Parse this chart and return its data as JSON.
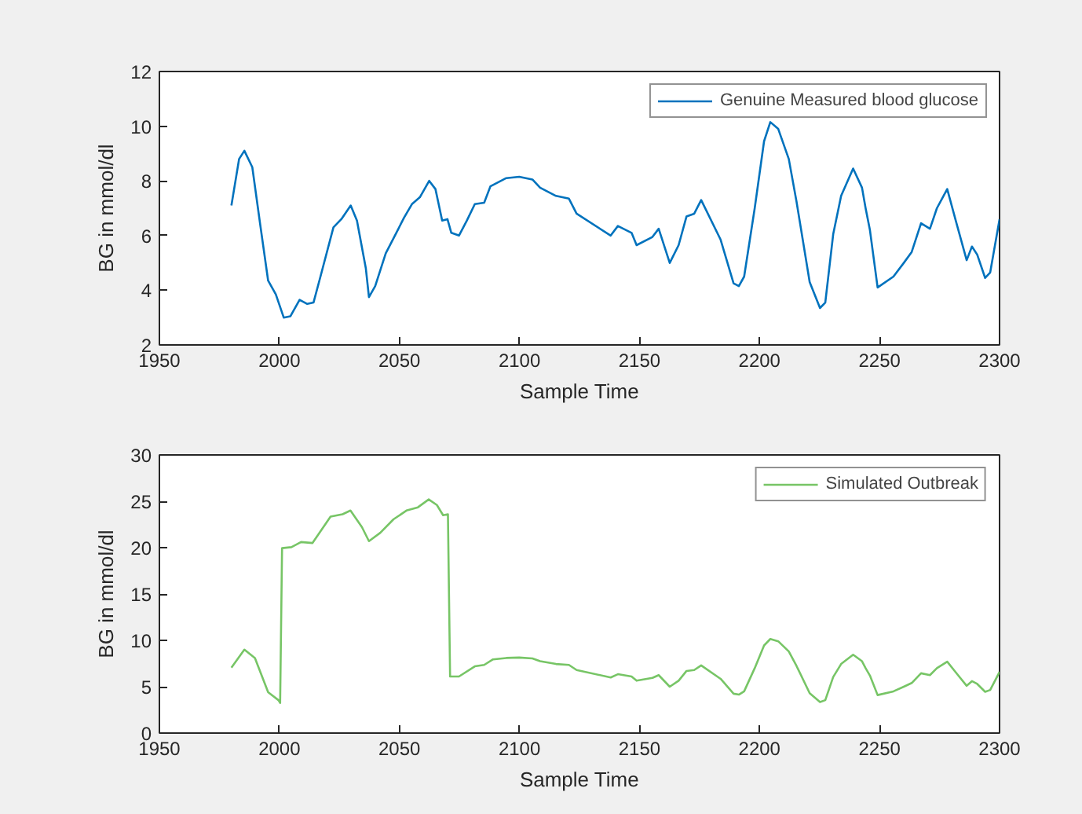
{
  "chart_data": [
    {
      "type": "line",
      "xlabel": "Sample Time",
      "ylabel": "BG in mmol/dl",
      "xlim": [
        1950,
        2300
      ],
      "xticks": [
        1950,
        2000,
        2050,
        2100,
        2150,
        2200,
        2250,
        2300
      ],
      "ylim": [
        2,
        12
      ],
      "yticks": [
        2,
        4,
        6,
        8,
        10,
        12
      ],
      "grid": false,
      "legend": "top right",
      "series": [
        {
          "name": "Genuine Measured blood glucose",
          "color": "#0072bd",
          "x": [
            1980,
            1983.2,
            1985.4,
            1988.7,
            1992,
            1995.3,
            1998.5,
            2001.8,
            2004.6,
            2008.4,
            2011.6,
            2014.2,
            2017.1,
            2022.5,
            2025.8,
            2029.7,
            2032.3,
            2036,
            2037.3,
            2039.9,
            2044.3,
            2048.7,
            2051.9,
            2055.2,
            2058.5,
            2062.4,
            2065,
            2067.8,
            2070,
            2071.6,
            2074.8,
            2078.1,
            2081.4,
            2085.3,
            2087.9,
            2094.5,
            2099.9,
            2105.4,
            2108.6,
            2115.2,
            2120.6,
            2123.8,
            2138,
            2141,
            2146.7,
            2148.8,
            2155.4,
            2158,
            2162.6,
            2166.3,
            2169.6,
            2172.8,
            2175.7,
            2183.8,
            2189.2,
            2191.4,
            2193.6,
            2198,
            2201.9,
            2204.5,
            2207.8,
            2212.2,
            2215.4,
            2220.9,
            2225.2,
            2227.4,
            2230.7,
            2234,
            2239,
            2242.7,
            2244.2,
            2246,
            2249.2,
            2255.8,
            2260.1,
            2263.4,
            2267.3,
            2271,
            2273.9,
            2278.2,
            2281.9,
            2286.3,
            2288.5,
            2290.7,
            2294,
            2296.1,
            2300
          ],
          "values": [
            7.1,
            8.8,
            9.1,
            8.5,
            6.4,
            4.35,
            3.85,
            3.0,
            3.05,
            3.65,
            3.5,
            3.55,
            4.5,
            6.3,
            6.6,
            7.1,
            6.55,
            4.8,
            3.75,
            4.15,
            5.35,
            6.1,
            6.65,
            7.15,
            7.4,
            8.0,
            7.7,
            6.55,
            6.6,
            6.1,
            6.0,
            6.55,
            7.15,
            7.2,
            7.8,
            8.1,
            8.15,
            8.05,
            7.75,
            7.45,
            7.35,
            6.8,
            6.0,
            6.35,
            6.1,
            5.65,
            5.95,
            6.25,
            5.0,
            5.65,
            6.7,
            6.8,
            7.3,
            5.85,
            4.25,
            4.15,
            4.5,
            7.0,
            9.45,
            10.15,
            9.9,
            8.8,
            7.25,
            4.3,
            3.35,
            3.55,
            6.05,
            7.45,
            8.45,
            7.75,
            7.0,
            6.2,
            4.1,
            4.5,
            5.0,
            5.4,
            6.45,
            6.25,
            7.0,
            7.7,
            6.5,
            5.1,
            5.6,
            5.3,
            4.45,
            4.65,
            6.6
          ]
        }
      ]
    },
    {
      "type": "line",
      "xlabel": "Sample Time",
      "ylabel": "BG in mmol/dl",
      "xlim": [
        1950,
        2300
      ],
      "xticks": [
        1950,
        2000,
        2050,
        2100,
        2150,
        2200,
        2250,
        2300
      ],
      "ylim": [
        0,
        30
      ],
      "yticks": [
        0,
        5,
        10,
        15,
        20,
        25,
        30
      ],
      "grid": false,
      "legend": "top right",
      "series": [
        {
          "name": "Simulated Outbreak",
          "color": "#77c566",
          "x": [
            1980,
            1985.4,
            1989.8,
            1995.3,
            1999.6,
            2000.3,
            2001.1,
            2005,
            2009,
            2013.8,
            2021.3,
            2026.3,
            2029.6,
            2034.4,
            2037.3,
            2042,
            2047.5,
            2052.9,
            2057.7,
            2062.2,
            2065.6,
            2068.2,
            2070.2,
            2071.1,
            2074.8,
            2081.4,
            2085.3,
            2089,
            2094.5,
            2099.9,
            2105.4,
            2108.6,
            2115.2,
            2120.6,
            2123.8,
            2138,
            2141,
            2146.7,
            2148.8,
            2155.4,
            2158,
            2162.6,
            2166.3,
            2169.6,
            2172.8,
            2175.7,
            2183.8,
            2189.2,
            2191.4,
            2193.6,
            2198,
            2201.9,
            2204.5,
            2207.8,
            2212.2,
            2215.4,
            2220.9,
            2225.2,
            2227.4,
            2230.7,
            2234,
            2239,
            2242.7,
            2244.2,
            2246,
            2249.2,
            2255.8,
            2260.1,
            2263.4,
            2267.3,
            2271,
            2273.9,
            2278.2,
            2281.9,
            2286.3,
            2288.5,
            2290.7,
            2294,
            2296.1,
            2300
          ],
          "values": [
            7.05,
            9.0,
            8.1,
            4.4,
            3.55,
            3.25,
            19.95,
            20.05,
            20.6,
            20.5,
            23.35,
            23.6,
            24.0,
            22.2,
            20.7,
            21.6,
            23.05,
            24.0,
            24.35,
            25.2,
            24.6,
            23.5,
            23.6,
            6.1,
            6.1,
            7.2,
            7.35,
            7.95,
            8.1,
            8.15,
            8.05,
            7.75,
            7.45,
            7.35,
            6.8,
            6.0,
            6.35,
            6.1,
            5.65,
            5.95,
            6.25,
            5.0,
            5.65,
            6.7,
            6.8,
            7.3,
            5.85,
            4.25,
            4.15,
            4.5,
            7.0,
            9.45,
            10.15,
            9.9,
            8.8,
            7.25,
            4.3,
            3.35,
            3.55,
            6.05,
            7.45,
            8.45,
            7.75,
            7.0,
            6.2,
            4.1,
            4.5,
            5.0,
            5.4,
            6.45,
            6.25,
            7.0,
            7.7,
            6.5,
            5.1,
            5.6,
            5.3,
            4.45,
            4.65,
            6.6
          ]
        }
      ]
    }
  ]
}
